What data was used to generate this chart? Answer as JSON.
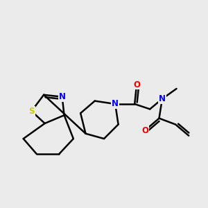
{
  "background_color": "#ebebeb",
  "atom_colors": {
    "N": "#0000ee",
    "O": "#ee0000",
    "S": "#cccc00",
    "C": "#000000"
  },
  "bond_color": "#000000",
  "bond_width": 1.8,
  "font_size_atoms": 8.5,
  "fig_width": 3.0,
  "fig_height": 3.0,
  "dpi": 100,
  "xlim": [
    0,
    10
  ],
  "ylim": [
    0,
    10
  ]
}
